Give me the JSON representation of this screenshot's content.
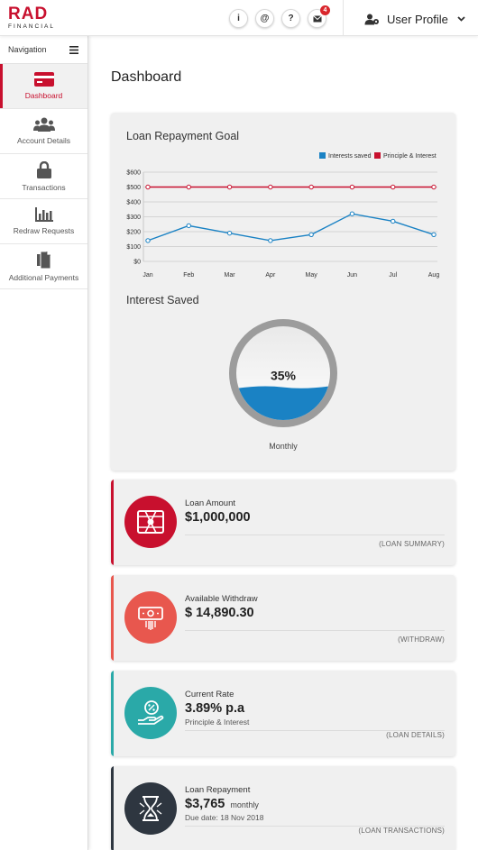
{
  "brand": {
    "logo_main": "RAD",
    "logo_sub": "FINANCIAL",
    "accent": "#c8102e"
  },
  "topbar": {
    "icons": [
      {
        "name": "info-icon",
        "glyph": "i"
      },
      {
        "name": "at-icon",
        "glyph": "@"
      },
      {
        "name": "help-icon",
        "glyph": "?"
      },
      {
        "name": "mail-icon",
        "glyph": "✉",
        "badge": "4"
      }
    ],
    "profile_label": "User Profile"
  },
  "sidebar": {
    "heading": "Navigation",
    "items": [
      {
        "label": "Dashboard",
        "icon": "card-icon",
        "active": true
      },
      {
        "label": "Account Details",
        "icon": "users-icon",
        "active": false
      },
      {
        "label": "Transactions",
        "icon": "lock-icon",
        "active": false
      },
      {
        "label": "Redraw Requests",
        "icon": "bar-chart-icon",
        "active": false
      },
      {
        "label": "Additional Payments",
        "icon": "documents-icon",
        "active": false
      }
    ]
  },
  "main": {
    "title": "Dashboard",
    "repayment_title": "Loan Repayment Goal",
    "interest_title": "Interest Saved",
    "gauge_value": "35%",
    "gauge_fill_fraction": 0.35,
    "gauge_caption": "Monthly"
  },
  "chart_data": {
    "type": "line",
    "title": "Loan Repayment Goal",
    "categories": [
      "Jan",
      "Feb",
      "Mar",
      "Apr",
      "May",
      "Jun",
      "Jul",
      "Aug"
    ],
    "series": [
      {
        "name": "Interests saved",
        "color": "#1a82c4",
        "values": [
          140,
          240,
          190,
          140,
          180,
          320,
          270,
          180
        ]
      },
      {
        "name": "Principle & Interest",
        "color": "#c8102e",
        "values": [
          500,
          500,
          500,
          500,
          500,
          500,
          500,
          500
        ]
      }
    ],
    "yticks": [
      "$0",
      "$100",
      "$200",
      "$300",
      "$400",
      "$500",
      "$600"
    ],
    "ylim": [
      0,
      600
    ],
    "grid": true,
    "legend": "top-right"
  },
  "cards": [
    {
      "label": "Loan Amount",
      "value": "$1,000,000",
      "suffix": "",
      "sub": "",
      "link": "(LOAN SUMMARY)",
      "icon": "money-icon",
      "color": "#c8102e"
    },
    {
      "label": "Available Withdraw",
      "value": "$ 14,890.30",
      "suffix": "",
      "sub": "",
      "link": "(WITHDRAW)",
      "icon": "cash-withdraw-icon",
      "color": "#e8574e"
    },
    {
      "label": "Current Rate",
      "value": "3.89% p.a",
      "suffix": "",
      "sub": "Principle & Interest",
      "link": "(LOAN DETAILS)",
      "icon": "rate-hand-icon",
      "color": "#2aa9a8"
    },
    {
      "label": "Loan Repayment",
      "value": "$3,765",
      "suffix": "monthly",
      "sub": "Due date: 18 Nov 2018",
      "link": "(LOAN TRANSACTIONS)",
      "icon": "hourglass-icon",
      "color": "#2e3640"
    }
  ]
}
